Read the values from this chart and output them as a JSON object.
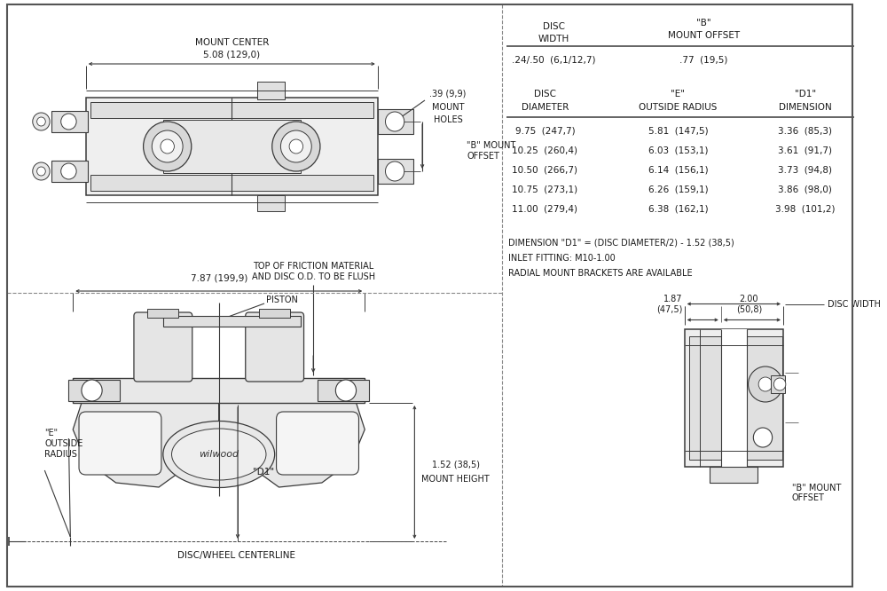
{
  "bg_color": "#ffffff",
  "line_color": "#3a3a3a",
  "text_color": "#1a1a1a",
  "table1_row": [
    ".24/.50  (6,1/12,7)",
    ".77  (19,5)"
  ],
  "table2_rows": [
    [
      "9.75  (247,7)",
      "5.81  (147,5)",
      "3.36  (85,3)"
    ],
    [
      "10.25  (260,4)",
      "6.03  (153,1)",
      "3.61  (91,7)"
    ],
    [
      "10.50  (266,7)",
      "6.14  (156,1)",
      "3.73  (94,8)"
    ],
    [
      "10.75  (273,1)",
      "6.26  (159,1)",
      "3.86  (98,0)"
    ],
    [
      "11.00  (279,4)",
      "6.38  (162,1)",
      "3.98  (101,2)"
    ]
  ],
  "note1": "DIMENSION \"D1\" = (DISC DIAMETER/2) - 1.52 (38,5)",
  "note2": "INLET FITTING: M10-1.00",
  "note3": "RADIAL MOUNT BRACKETS ARE AVAILABLE",
  "dim_mount_center": "5.08 (129,0)",
  "label_mount_center": "MOUNT CENTER",
  "dim_mount_holes": ".39 (9,9)",
  "dim_width_bottom": "7.87 (199,9)",
  "label_piston": "PISTON",
  "dim_mount_height": "1.52 (38,5)",
  "label_mount_height": "MOUNT HEIGHT",
  "label_d1": "\"D1\"",
  "label_disc_wheel_cl": "DISC/WHEEL CENTERLINE",
  "label_friction_top": "TOP OF FRICTION MATERIAL\nAND DISC O.D. TO BE FLUSH",
  "label_disc_width_right": "DISC WIDTH",
  "label_b_mount_offset_right": "\"B\" MOUNT\nOFFSET"
}
